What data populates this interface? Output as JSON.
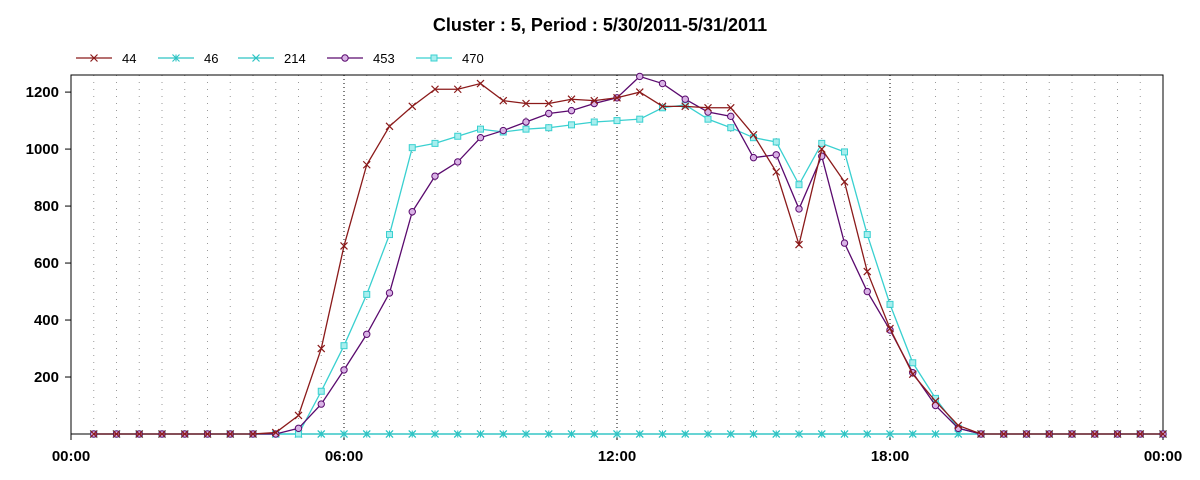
{
  "chart_data": {
    "type": "line",
    "title": "Cluster : 5, Period : 5/30/2011-5/31/2011",
    "xlabel": "",
    "ylabel": "",
    "x_ticks": [
      "00:00",
      "06:00",
      "12:00",
      "18:00",
      "00:00"
    ],
    "x_tick_hours": [
      0,
      6,
      12,
      18,
      24
    ],
    "xlim": [
      0,
      24
    ],
    "ylim": [
      0,
      1260
    ],
    "y_ticks": [
      200,
      400,
      600,
      800,
      1000,
      1200
    ],
    "grid": "vertical-dotted",
    "legend_position": "top-left",
    "x": [
      0.5,
      1.0,
      1.5,
      2.0,
      2.5,
      3.0,
      3.5,
      4.0,
      4.5,
      5.0,
      5.5,
      6.0,
      6.5,
      7.0,
      7.5,
      8.0,
      8.5,
      9.0,
      9.5,
      10.0,
      10.5,
      11.0,
      11.5,
      12.0,
      12.5,
      13.0,
      13.5,
      14.0,
      14.5,
      15.0,
      15.5,
      16.0,
      16.5,
      17.0,
      17.5,
      18.0,
      18.5,
      19.0,
      19.5,
      20.0,
      20.5,
      21.0,
      21.5,
      22.0,
      22.5,
      23.0,
      23.5,
      24.0
    ],
    "series": [
      {
        "name": "44",
        "color": "#8b1a1a",
        "marker": "x",
        "values": [
          0,
          0,
          0,
          0,
          0,
          0,
          0,
          0,
          5,
          65,
          300,
          660,
          945,
          1080,
          1150,
          1210,
          1210,
          1230,
          1170,
          1160,
          1160,
          1175,
          1170,
          1180,
          1200,
          1150,
          1150,
          1145,
          1145,
          1050,
          920,
          665,
          1000,
          885,
          570,
          370,
          210,
          115,
          30,
          0,
          0,
          0,
          0,
          0,
          0,
          0,
          0,
          0
        ]
      },
      {
        "name": "46",
        "color": "#2ec4c4",
        "marker": "star",
        "values": [
          0,
          0,
          0,
          0,
          0,
          0,
          0,
          0,
          0,
          0,
          0,
          0,
          0,
          0,
          0,
          0,
          0,
          0,
          0,
          0,
          0,
          0,
          0,
          0,
          0,
          0,
          0,
          0,
          0,
          0,
          0,
          0,
          0,
          0,
          0,
          0,
          0,
          0,
          0,
          0,
          0,
          0,
          0,
          0,
          0,
          0,
          0,
          0
        ]
      },
      {
        "name": "214",
        "color": "#2ec4c4",
        "marker": "x",
        "values": [
          0,
          0,
          0,
          0,
          0,
          0,
          0,
          0,
          0,
          0,
          0,
          0,
          0,
          0,
          0,
          0,
          0,
          0,
          0,
          0,
          0,
          0,
          0,
          0,
          0,
          0,
          0,
          0,
          0,
          0,
          0,
          0,
          0,
          0,
          0,
          0,
          0,
          0,
          0,
          0,
          0,
          0,
          0,
          0,
          0,
          0,
          0,
          0
        ]
      },
      {
        "name": "453",
        "color": "#5a0a6e",
        "marker": "circle",
        "values": [
          0,
          0,
          0,
          0,
          0,
          0,
          0,
          0,
          0,
          20,
          105,
          225,
          350,
          495,
          780,
          905,
          955,
          1040,
          1065,
          1095,
          1125,
          1135,
          1160,
          1180,
          1255,
          1230,
          1175,
          1130,
          1115,
          970,
          980,
          790,
          975,
          670,
          500,
          365,
          215,
          100,
          20,
          0,
          0,
          0,
          0,
          0,
          0,
          0,
          0,
          0
        ]
      },
      {
        "name": "470",
        "color": "#39d0d0",
        "marker": "square",
        "values": [
          0,
          0,
          0,
          0,
          0,
          0,
          0,
          0,
          0,
          0,
          150,
          310,
          490,
          700,
          1005,
          1020,
          1045,
          1070,
          1060,
          1070,
          1075,
          1085,
          1095,
          1100,
          1105,
          1145,
          1155,
          1105,
          1075,
          1040,
          1025,
          875,
          1020,
          990,
          700,
          455,
          250,
          125,
          20,
          0,
          0,
          0,
          0,
          0,
          0,
          0,
          0,
          0
        ]
      }
    ]
  }
}
